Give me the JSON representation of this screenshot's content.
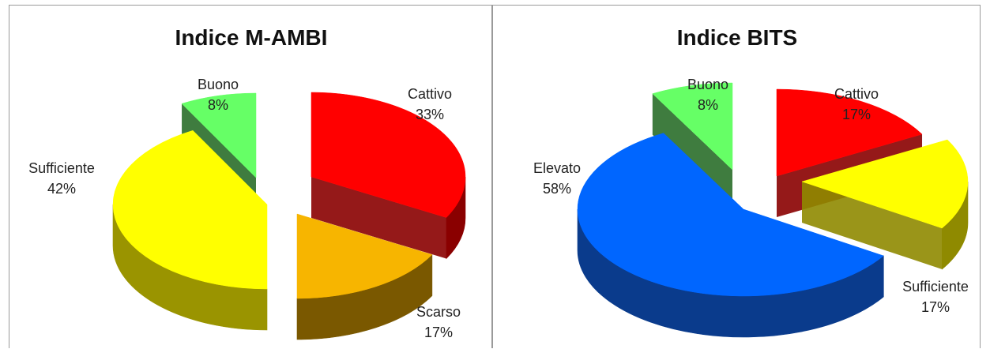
{
  "header": {
    "title": ""
  },
  "chart_data": [
    {
      "type": "pie",
      "title": "Indice M-AMBI",
      "slices": [
        {
          "name": "Cattivo",
          "label": "33%",
          "value": 33,
          "color": "#ff0000",
          "side": "#8a0000"
        },
        {
          "name": "Scarso",
          "label": "17%",
          "value": 17,
          "color": "#f7b500",
          "side": "#7a5800"
        },
        {
          "name": "Sufficiente",
          "label": "42%",
          "value": 42,
          "color": "#ffff00",
          "side": "#9a9400"
        },
        {
          "name": "Buono",
          "label": "8%",
          "value": 8,
          "color": "#66ff66",
          "side": "#2a6e2a"
        }
      ]
    },
    {
      "type": "pie",
      "title": "Indice BITS",
      "slices": [
        {
          "name": "Cattivo",
          "label": "17%",
          "value": 17,
          "color": "#ff0000",
          "side": "#8a0000"
        },
        {
          "name": "Sufficiente",
          "label": "17%",
          "value": 17,
          "color": "#ffff00",
          "side": "#8f8a00"
        },
        {
          "name": "Elevato",
          "label": "58%",
          "value": 58,
          "color": "#0066ff",
          "side": "#0a3b8c"
        },
        {
          "name": "Buono",
          "label": "8%",
          "value": 8,
          "color": "#66ff66",
          "side": "#2a6e2a"
        }
      ]
    }
  ]
}
